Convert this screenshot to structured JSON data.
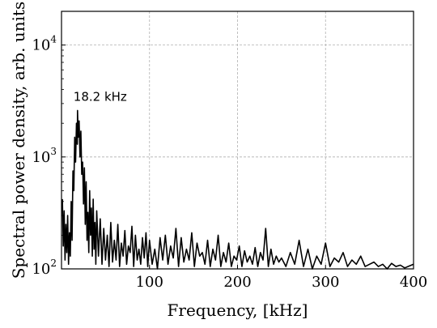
{
  "chart_data": {
    "type": "line",
    "title": "",
    "xlabel": "Frequency, [kHz]",
    "ylabel": "Spectral power density, arb. units",
    "xlim": [
      0,
      400
    ],
    "ylim": [
      100,
      20000
    ],
    "y_scale": "log",
    "grid": true,
    "x_ticks": [
      {
        "value": 100,
        "label": "100"
      },
      {
        "value": 200,
        "label": "200"
      },
      {
        "value": 300,
        "label": "300"
      },
      {
        "value": 400,
        "label": "400"
      }
    ],
    "y_ticks": [
      {
        "value": 100,
        "base": "10",
        "exp": "2"
      },
      {
        "value": 1000,
        "base": "10",
        "exp": "3"
      },
      {
        "value": 10000,
        "base": "10",
        "exp": "4"
      }
    ],
    "annotations": [
      {
        "text": "18.2 kHz",
        "x": 18.2,
        "y": 2600
      }
    ],
    "line_color": "#000000",
    "series": [
      {
        "x": [
          1,
          2,
          3,
          4,
          5,
          6,
          7,
          8,
          9,
          10,
          11,
          12,
          13,
          14,
          15,
          16,
          17,
          18,
          18.2,
          19,
          20,
          21,
          22,
          23,
          24,
          25,
          26,
          27,
          28,
          29,
          30,
          31,
          32,
          33,
          34,
          35,
          36,
          37,
          38,
          39,
          40,
          42,
          44,
          46,
          48,
          50,
          52,
          54,
          56,
          58,
          60,
          62,
          64,
          66,
          68,
          70,
          72,
          74,
          76,
          78,
          80,
          82,
          84,
          86,
          88,
          90,
          92,
          94,
          96,
          98,
          100,
          103,
          106,
          109,
          112,
          115,
          118,
          121,
          124,
          127,
          130,
          133,
          136,
          139,
          142,
          145,
          148,
          151,
          154,
          157,
          160,
          163,
          166,
          169,
          172,
          175,
          178,
          181,
          184,
          187,
          190,
          193,
          196,
          199,
          202,
          205,
          208,
          211,
          214,
          217,
          220,
          223,
          226,
          229,
          232,
          235,
          238,
          241,
          244,
          247,
          250,
          255,
          260,
          265,
          270,
          275,
          280,
          285,
          290,
          295,
          300,
          305,
          310,
          315,
          320,
          325,
          330,
          335,
          340,
          345,
          350,
          355,
          360,
          365,
          370,
          375,
          380,
          385,
          390,
          395,
          400
        ],
        "y": [
          420,
          160,
          330,
          120,
          250,
          140,
          300,
          110,
          210,
          130,
          400,
          180,
          750,
          500,
          1500,
          900,
          2000,
          1300,
          2600,
          1500,
          2100,
          1000,
          1700,
          700,
          900,
          380,
          800,
          250,
          600,
          180,
          320,
          140,
          500,
          200,
          350,
          130,
          420,
          150,
          260,
          110,
          330,
          130,
          280,
          110,
          230,
          120,
          200,
          105,
          260,
          115,
          180,
          120,
          250,
          105,
          170,
          130,
          220,
          110,
          160,
          140,
          240,
          105,
          200,
          120,
          150,
          110,
          190,
          125,
          210,
          105,
          180,
          110,
          150,
          100,
          190,
          120,
          200,
          110,
          160,
          125,
          230,
          105,
          190,
          115,
          150,
          120,
          210,
          105,
          170,
          130,
          140,
          110,
          180,
          105,
          150,
          120,
          200,
          105,
          140,
          115,
          170,
          105,
          130,
          120,
          160,
          105,
          145,
          115,
          130,
          110,
          155,
          105,
          140,
          120,
          230,
          105,
          150,
          110,
          130,
          115,
          125,
          105,
          140,
          110,
          180,
          105,
          150,
          100,
          130,
          110,
          170,
          105,
          125,
          115,
          140,
          105,
          120,
          110,
          130,
          105,
          110,
          115,
          105,
          110,
          100,
          112,
          105,
          108,
          102,
          106,
          110
        ]
      }
    ]
  }
}
